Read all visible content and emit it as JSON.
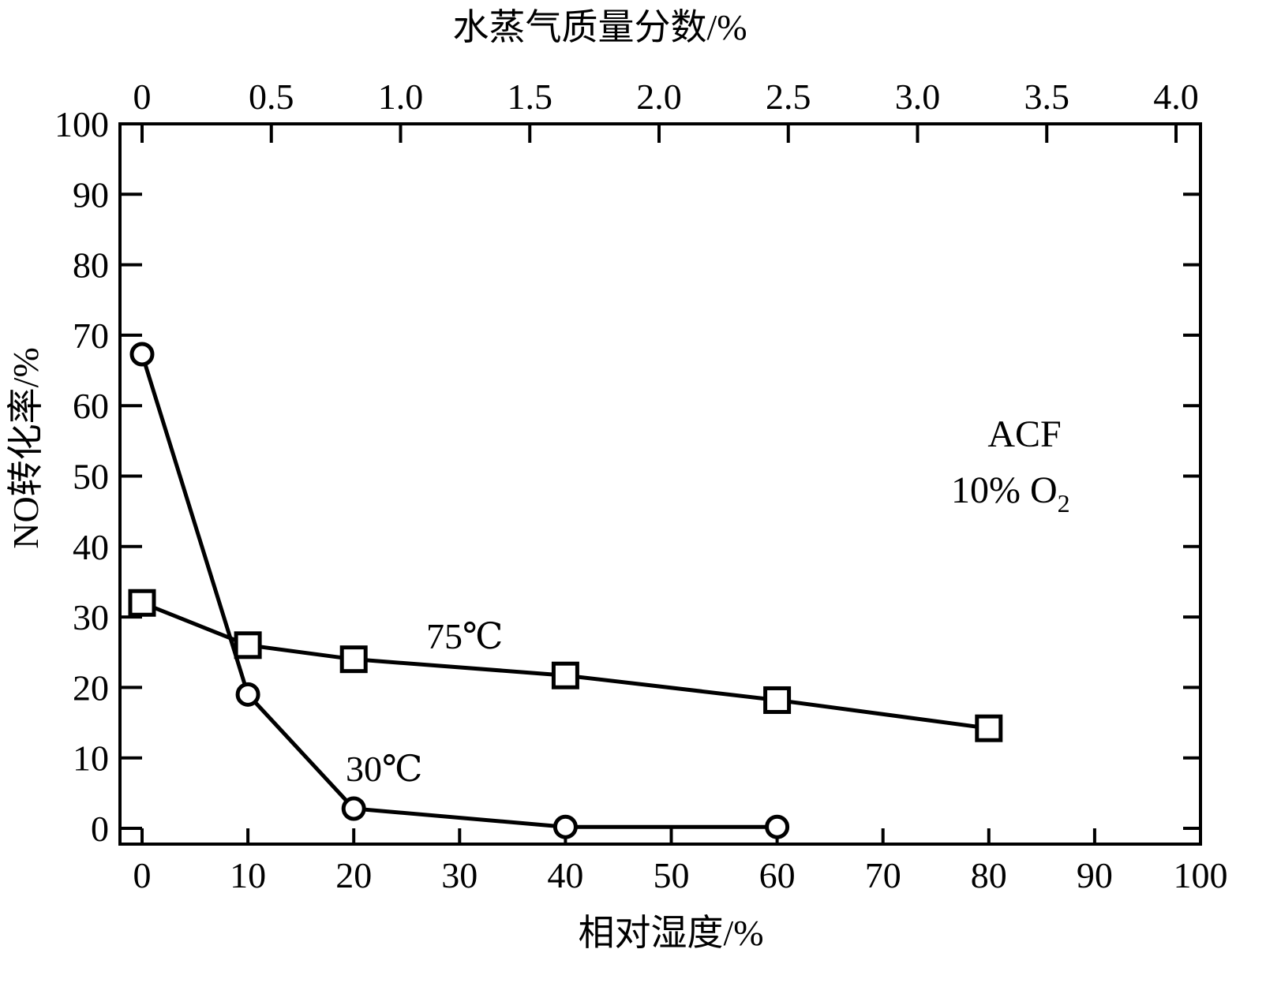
{
  "chart_data": {
    "type": "line",
    "xlabel": "相对湿度/%",
    "x2label": "水蒸气质量分数/%",
    "ylabel": "NO转化率/%",
    "xlim": [
      -2,
      100
    ],
    "x2lim": [
      0,
      4.0
    ],
    "ylim": [
      -2,
      100
    ],
    "xticks": [
      0,
      10,
      20,
      30,
      40,
      50,
      60,
      70,
      80,
      90,
      100
    ],
    "x2ticks": [
      "0",
      "0.5",
      "1.0",
      "1.5",
      "2.0",
      "2.5",
      "3.0",
      "3.5",
      "4.0"
    ],
    "yticks": [
      0,
      10,
      20,
      30,
      40,
      50,
      60,
      70,
      80,
      90,
      100
    ],
    "grid": false,
    "series": [
      {
        "name": "30℃",
        "marker": "circle",
        "x": [
          0,
          10,
          20,
          40,
          60
        ],
        "y": [
          67.3,
          19,
          2.8,
          0.2,
          0.2
        ]
      },
      {
        "name": "75℃",
        "marker": "square",
        "x": [
          0,
          10,
          20,
          40,
          60,
          80
        ],
        "y": [
          32,
          26,
          24,
          21.7,
          18.2,
          14.2
        ]
      }
    ],
    "annotations": {
      "acf": "ACF",
      "o2": "10% O",
      "o2_sub": "2"
    },
    "colors": {
      "line": "#000000",
      "background": "#ffffff"
    }
  }
}
